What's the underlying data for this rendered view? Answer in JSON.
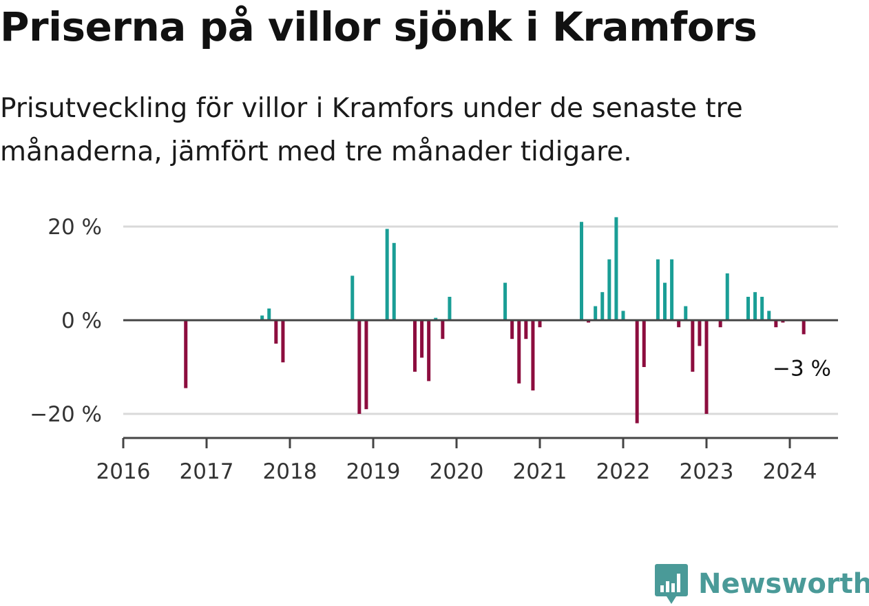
{
  "title": "Priserna på villor sjönk i Kramfors",
  "subtitle": "Prisutveckling för villor i Kramfors under de senaste tre månaderna, jämfört med tre månader tidigare.",
  "colors": {
    "positive": "#1a9e96",
    "negative": "#8c0d3e",
    "grid": "#d9d9d9",
    "axis": "#444444",
    "logo": "#4a9a98"
  },
  "brand": {
    "name": "Newsworthy",
    "icon": "bar-chart-chat-icon"
  },
  "chart_data": {
    "type": "bar",
    "title": "Priserna på villor sjönk i Kramfors",
    "xlabel": "",
    "ylabel": "",
    "ylim": [
      -25,
      23
    ],
    "xlim": [
      "2016-01",
      "2024-07"
    ],
    "y_ticks": [
      {
        "value": 20,
        "label": "20 %"
      },
      {
        "value": 0,
        "label": "0 %"
      },
      {
        "value": -20,
        "label": "−20 %"
      }
    ],
    "x_ticks": [
      "2016",
      "2017",
      "2018",
      "2019",
      "2020",
      "2021",
      "2022",
      "2023",
      "2024"
    ],
    "grid": true,
    "annotation": {
      "text": "−3 %",
      "month": "2024-03",
      "value": -3
    },
    "points": [
      {
        "month": "2016-10",
        "value": -14.5
      },
      {
        "month": "2017-09",
        "value": 1
      },
      {
        "month": "2017-10",
        "value": 2.5
      },
      {
        "month": "2017-11",
        "value": -5
      },
      {
        "month": "2017-12",
        "value": -9
      },
      {
        "month": "2018-10",
        "value": 9.5
      },
      {
        "month": "2018-11",
        "value": -20
      },
      {
        "month": "2018-12",
        "value": -19
      },
      {
        "month": "2019-03",
        "value": 19.5
      },
      {
        "month": "2019-04",
        "value": 16.5
      },
      {
        "month": "2019-07",
        "value": -11
      },
      {
        "month": "2019-08",
        "value": -8
      },
      {
        "month": "2019-09",
        "value": -13
      },
      {
        "month": "2019-10",
        "value": 0.5
      },
      {
        "month": "2019-11",
        "value": -4
      },
      {
        "month": "2019-12",
        "value": 5
      },
      {
        "month": "2020-08",
        "value": 8
      },
      {
        "month": "2020-09",
        "value": -4
      },
      {
        "month": "2020-10",
        "value": -13.5
      },
      {
        "month": "2020-11",
        "value": -4
      },
      {
        "month": "2020-12",
        "value": -15
      },
      {
        "month": "2021-01",
        "value": -1.5
      },
      {
        "month": "2021-07",
        "value": 21
      },
      {
        "month": "2021-08",
        "value": -0.5
      },
      {
        "month": "2021-09",
        "value": 3
      },
      {
        "month": "2021-10",
        "value": 6
      },
      {
        "month": "2021-11",
        "value": 13
      },
      {
        "month": "2021-12",
        "value": 22
      },
      {
        "month": "2022-01",
        "value": 2
      },
      {
        "month": "2022-03",
        "value": -22
      },
      {
        "month": "2022-04",
        "value": -10
      },
      {
        "month": "2022-06",
        "value": 13
      },
      {
        "month": "2022-07",
        "value": 8
      },
      {
        "month": "2022-08",
        "value": 13
      },
      {
        "month": "2022-09",
        "value": -1.5
      },
      {
        "month": "2022-10",
        "value": 3
      },
      {
        "month": "2022-11",
        "value": -11
      },
      {
        "month": "2022-12",
        "value": -5.5
      },
      {
        "month": "2023-01",
        "value": -20
      },
      {
        "month": "2023-03",
        "value": -1.5
      },
      {
        "month": "2023-04",
        "value": 10
      },
      {
        "month": "2023-07",
        "value": 5
      },
      {
        "month": "2023-08",
        "value": 6
      },
      {
        "month": "2023-09",
        "value": 5
      },
      {
        "month": "2023-10",
        "value": 2
      },
      {
        "month": "2023-11",
        "value": -1.5
      },
      {
        "month": "2023-12",
        "value": -0.5
      },
      {
        "month": "2024-03",
        "value": -3
      }
    ]
  }
}
